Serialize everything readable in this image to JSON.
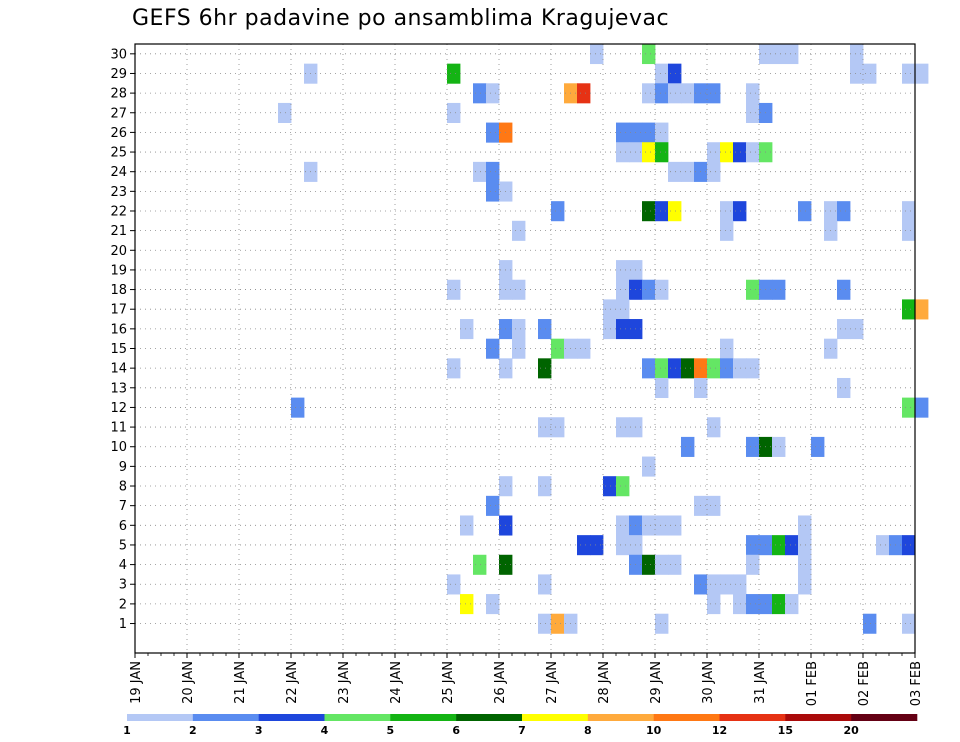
{
  "chart_data": {
    "type": "heatmap",
    "title": "GEFS 6hr padavine po ansamblima Kragujevac",
    "xlabel": "",
    "ylabel": "",
    "x_tick_labels": [
      "19 JAN",
      "20 JAN",
      "21 JAN",
      "22 JAN",
      "23 JAN",
      "24 JAN",
      "25 JAN",
      "26 JAN",
      "27 JAN",
      "28 JAN",
      "29 JAN",
      "30 JAN",
      "31 JAN",
      "01 FEB",
      "02 FEB",
      "03 FEB"
    ],
    "x_unit": "6-hour steps from 19 JAN 00z",
    "x_range": [
      0,
      60
    ],
    "y_ticks": [
      1,
      2,
      3,
      4,
      5,
      6,
      7,
      8,
      9,
      10,
      11,
      12,
      13,
      14,
      15,
      16,
      17,
      18,
      19,
      20,
      21,
      22,
      23,
      24,
      25,
      26,
      27,
      28,
      29,
      30
    ],
    "y_range": [
      0,
      30
    ],
    "grid": true,
    "colorbar": {
      "placement": "bottom",
      "labels": [
        "1",
        "2",
        "3",
        "4",
        "5",
        "6",
        "7",
        "8",
        "10",
        "12",
        "15",
        "20"
      ],
      "colors": [
        "#b4c8f5",
        "#5a8cf0",
        "#1e46dc",
        "#64e664",
        "#14b414",
        "#006400",
        "#ffff00",
        "#ffaa3c",
        "#ff7814",
        "#e63214",
        "#aa0a0a",
        "#640014"
      ]
    },
    "level_colors": {
      "1": "#b4c8f5",
      "2": "#5a8cf0",
      "3": "#1e46dc",
      "4": "#64e664",
      "5": "#14b414",
      "6": "#006400",
      "7": "#ffff00",
      "8": "#ffaa3c",
      "9": "#ff7814",
      "10": "#e63214"
    },
    "cells_note": "each cell: [x_step_start, member, color_level]; member 0 = bottom strip",
    "cells": [
      [
        35,
        30,
        1
      ],
      [
        50,
        30,
        1
      ],
      [
        48,
        30,
        1
      ],
      [
        39,
        30,
        4
      ],
      [
        49,
        30,
        1
      ],
      [
        55,
        30,
        1
      ],
      [
        13,
        29,
        1
      ],
      [
        24,
        29,
        5
      ],
      [
        40,
        29,
        1
      ],
      [
        41,
        29,
        3
      ],
      [
        55,
        29,
        1
      ],
      [
        56,
        29,
        1
      ],
      [
        59,
        29,
        1
      ],
      [
        60,
        29,
        1
      ],
      [
        26,
        28,
        2
      ],
      [
        27,
        28,
        1
      ],
      [
        33,
        28,
        8
      ],
      [
        34,
        28,
        10
      ],
      [
        39,
        28,
        1
      ],
      [
        40,
        28,
        2
      ],
      [
        41,
        28,
        1
      ],
      [
        42,
        28,
        1
      ],
      [
        43,
        28,
        2
      ],
      [
        44,
        28,
        2
      ],
      [
        47,
        28,
        1
      ],
      [
        11,
        27,
        1
      ],
      [
        24,
        27,
        1
      ],
      [
        47,
        27,
        1
      ],
      [
        48,
        27,
        2
      ],
      [
        27,
        26,
        2
      ],
      [
        28,
        26,
        9
      ],
      [
        37,
        26,
        2
      ],
      [
        38,
        26,
        2
      ],
      [
        39,
        26,
        2
      ],
      [
        40,
        26,
        1
      ],
      [
        37,
        25,
        1
      ],
      [
        38,
        25,
        1
      ],
      [
        39,
        25,
        7
      ],
      [
        40,
        25,
        5
      ],
      [
        44,
        25,
        1
      ],
      [
        45,
        25,
        7
      ],
      [
        46,
        25,
        3
      ],
      [
        47,
        25,
        1
      ],
      [
        48,
        25,
        4
      ],
      [
        13,
        24,
        1
      ],
      [
        26,
        24,
        1
      ],
      [
        27,
        24,
        2
      ],
      [
        41,
        24,
        1
      ],
      [
        42,
        24,
        1
      ],
      [
        43,
        24,
        2
      ],
      [
        44,
        24,
        1
      ],
      [
        27,
        23,
        2
      ],
      [
        28,
        23,
        1
      ],
      [
        32,
        22,
        2
      ],
      [
        39,
        22,
        6
      ],
      [
        40,
        22,
        3
      ],
      [
        41,
        22,
        7
      ],
      [
        45,
        22,
        1
      ],
      [
        46,
        22,
        3
      ],
      [
        51,
        22,
        2
      ],
      [
        53,
        22,
        1
      ],
      [
        54,
        22,
        2
      ],
      [
        59,
        22,
        1
      ],
      [
        29,
        21,
        1
      ],
      [
        45,
        21,
        1
      ],
      [
        53,
        21,
        1
      ],
      [
        59,
        21,
        1
      ],
      [
        28,
        19,
        1
      ],
      [
        37,
        19,
        1
      ],
      [
        38,
        19,
        1
      ],
      [
        24,
        18,
        1
      ],
      [
        28,
        18,
        1
      ],
      [
        29,
        18,
        1
      ],
      [
        37,
        18,
        1
      ],
      [
        38,
        18,
        3
      ],
      [
        39,
        18,
        2
      ],
      [
        40,
        18,
        1
      ],
      [
        47,
        18,
        4
      ],
      [
        48,
        18,
        2
      ],
      [
        49,
        18,
        2
      ],
      [
        54,
        18,
        2
      ],
      [
        36,
        17,
        1
      ],
      [
        37,
        17,
        1
      ],
      [
        59,
        17,
        5
      ],
      [
        60,
        17,
        8
      ],
      [
        25,
        16,
        1
      ],
      [
        28,
        16,
        2
      ],
      [
        29,
        16,
        1
      ],
      [
        31,
        16,
        2
      ],
      [
        36,
        16,
        1
      ],
      [
        37,
        16,
        3
      ],
      [
        38,
        16,
        3
      ],
      [
        54,
        16,
        1
      ],
      [
        55,
        16,
        1
      ],
      [
        27,
        15,
        2
      ],
      [
        29,
        15,
        1
      ],
      [
        32,
        15,
        4
      ],
      [
        33,
        15,
        1
      ],
      [
        34,
        15,
        1
      ],
      [
        45,
        15,
        1
      ],
      [
        53,
        15,
        1
      ],
      [
        24,
        14,
        1
      ],
      [
        28,
        14,
        1
      ],
      [
        31,
        14,
        6
      ],
      [
        39,
        14,
        2
      ],
      [
        40,
        14,
        4
      ],
      [
        41,
        14,
        3
      ],
      [
        42,
        14,
        6
      ],
      [
        43,
        14,
        9
      ],
      [
        44,
        14,
        4
      ],
      [
        45,
        14,
        2
      ],
      [
        46,
        14,
        1
      ],
      [
        47,
        14,
        1
      ],
      [
        40,
        13,
        1
      ],
      [
        43,
        13,
        1
      ],
      [
        54,
        13,
        1
      ],
      [
        12,
        12,
        2
      ],
      [
        59,
        12,
        4
      ],
      [
        60,
        12,
        2
      ],
      [
        31,
        11,
        1
      ],
      [
        32,
        11,
        1
      ],
      [
        37,
        11,
        1
      ],
      [
        38,
        11,
        1
      ],
      [
        44,
        11,
        1
      ],
      [
        42,
        10,
        2
      ],
      [
        47,
        10,
        2
      ],
      [
        48,
        10,
        6
      ],
      [
        49,
        10,
        1
      ],
      [
        52,
        10,
        2
      ],
      [
        39,
        9,
        1
      ],
      [
        28,
        8,
        1
      ],
      [
        31,
        8,
        1
      ],
      [
        36,
        8,
        3
      ],
      [
        37,
        8,
        4
      ],
      [
        27,
        7,
        2
      ],
      [
        43,
        7,
        1
      ],
      [
        44,
        7,
        1
      ],
      [
        25,
        6,
        1
      ],
      [
        28,
        6,
        3
      ],
      [
        37,
        6,
        1
      ],
      [
        38,
        6,
        2
      ],
      [
        39,
        6,
        1
      ],
      [
        40,
        6,
        1
      ],
      [
        41,
        6,
        1
      ],
      [
        51,
        6,
        1
      ],
      [
        34,
        5,
        3
      ],
      [
        35,
        5,
        3
      ],
      [
        37,
        5,
        1
      ],
      [
        38,
        5,
        1
      ],
      [
        47,
        5,
        2
      ],
      [
        48,
        5,
        2
      ],
      [
        49,
        5,
        5
      ],
      [
        50,
        5,
        3
      ],
      [
        51,
        5,
        1
      ],
      [
        57,
        5,
        1
      ],
      [
        58,
        5,
        2
      ],
      [
        59,
        5,
        3
      ],
      [
        26,
        4,
        4
      ],
      [
        28,
        4,
        6
      ],
      [
        38,
        4,
        2
      ],
      [
        39,
        4,
        6
      ],
      [
        40,
        4,
        1
      ],
      [
        41,
        4,
        1
      ],
      [
        47,
        4,
        1
      ],
      [
        51,
        4,
        1
      ],
      [
        24,
        3,
        1
      ],
      [
        31,
        3,
        1
      ],
      [
        43,
        3,
        2
      ],
      [
        44,
        3,
        1
      ],
      [
        45,
        3,
        1
      ],
      [
        46,
        3,
        1
      ],
      [
        51,
        3,
        1
      ],
      [
        25,
        2,
        7
      ],
      [
        27,
        2,
        1
      ],
      [
        44,
        2,
        1
      ],
      [
        46,
        2,
        1
      ],
      [
        47,
        2,
        2
      ],
      [
        48,
        2,
        2
      ],
      [
        49,
        2,
        5
      ],
      [
        50,
        2,
        1
      ],
      [
        31,
        1,
        1
      ],
      [
        32,
        1,
        8
      ],
      [
        33,
        1,
        1
      ],
      [
        40,
        1,
        1
      ],
      [
        56,
        1,
        2
      ],
      [
        59,
        1,
        1
      ]
    ]
  }
}
